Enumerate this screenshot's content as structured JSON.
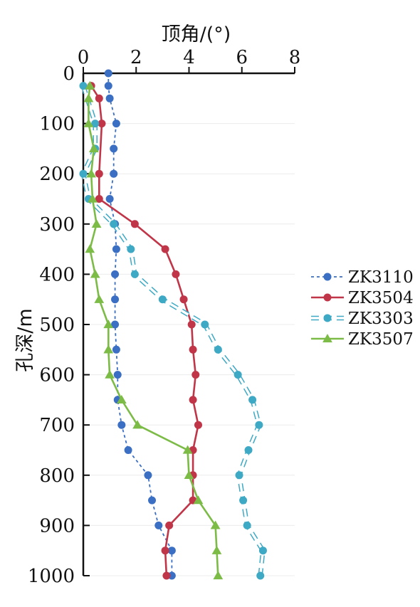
{
  "chart_data": {
    "type": "line",
    "title": "",
    "xlabel": "顶角/(°)",
    "ylabel": "孔深/m",
    "x_axis_position": "top",
    "y_axis_inverted": true,
    "xlim": [
      0,
      8
    ],
    "ylim": [
      0,
      1000
    ],
    "xticks": [
      "0",
      "2",
      "4",
      "6",
      "8"
    ],
    "yticks": [
      "0",
      "100",
      "200",
      "300",
      "400",
      "500",
      "600",
      "700",
      "800",
      "900",
      "1000"
    ],
    "grid": "faint horizontal",
    "legend_position": "right",
    "series": [
      {
        "name": "ZK3110",
        "color": "#3b6fc4",
        "line_style": "dashed",
        "marker": "circle",
        "points": [
          [
            0.95,
            0
          ],
          [
            0.95,
            25
          ],
          [
            1.0,
            50
          ],
          [
            1.25,
            100
          ],
          [
            1.15,
            150
          ],
          [
            1.15,
            200
          ],
          [
            1.0,
            250
          ],
          [
            1.2,
            300
          ],
          [
            1.25,
            350
          ],
          [
            1.2,
            400
          ],
          [
            1.2,
            450
          ],
          [
            1.2,
            500
          ],
          [
            1.25,
            550
          ],
          [
            1.3,
            600
          ],
          [
            1.3,
            650
          ],
          [
            1.45,
            700
          ],
          [
            1.7,
            750
          ],
          [
            2.45,
            800
          ],
          [
            2.6,
            850
          ],
          [
            2.85,
            900
          ],
          [
            3.35,
            950
          ],
          [
            3.35,
            1000
          ]
        ]
      },
      {
        "name": "ZK3504",
        "color": "#c03548",
        "line_style": "solid",
        "marker": "circle",
        "points": [
          [
            0.3,
            25
          ],
          [
            0.6,
            50
          ],
          [
            0.7,
            100
          ],
          [
            0.6,
            200
          ],
          [
            0.6,
            250
          ],
          [
            1.95,
            300
          ],
          [
            3.1,
            350
          ],
          [
            3.5,
            400
          ],
          [
            3.8,
            450
          ],
          [
            4.1,
            500
          ],
          [
            4.15,
            550
          ],
          [
            4.25,
            600
          ],
          [
            4.15,
            650
          ],
          [
            4.35,
            700
          ],
          [
            4.15,
            750
          ],
          [
            4.15,
            800
          ],
          [
            4.15,
            850
          ],
          [
            3.25,
            900
          ],
          [
            3.1,
            950
          ],
          [
            3.15,
            1000
          ]
        ]
      },
      {
        "name": "ZK3303",
        "color": "#3ea9c4",
        "line_style": "double-dashed",
        "marker": "circle",
        "points": [
          [
            0.0,
            25
          ],
          [
            0.45,
            100
          ],
          [
            0.45,
            150
          ],
          [
            0.0,
            200
          ],
          [
            0.2,
            250
          ],
          [
            1.15,
            300
          ],
          [
            1.8,
            350
          ],
          [
            1.95,
            400
          ],
          [
            3.0,
            450
          ],
          [
            4.6,
            500
          ],
          [
            5.1,
            550
          ],
          [
            5.85,
            600
          ],
          [
            6.4,
            650
          ],
          [
            6.65,
            700
          ],
          [
            6.25,
            750
          ],
          [
            5.9,
            800
          ],
          [
            6.05,
            850
          ],
          [
            6.2,
            900
          ],
          [
            6.8,
            950
          ],
          [
            6.7,
            1000
          ]
        ]
      },
      {
        "name": "ZK3507",
        "color": "#7bbb46",
        "line_style": "solid",
        "marker": "triangle",
        "points": [
          [
            0.25,
            25
          ],
          [
            0.2,
            50
          ],
          [
            0.2,
            100
          ],
          [
            0.4,
            150
          ],
          [
            0.3,
            200
          ],
          [
            0.35,
            250
          ],
          [
            0.5,
            300
          ],
          [
            0.25,
            350
          ],
          [
            0.45,
            400
          ],
          [
            0.6,
            450
          ],
          [
            0.95,
            500
          ],
          [
            0.95,
            550
          ],
          [
            1.0,
            600
          ],
          [
            1.45,
            650
          ],
          [
            2.05,
            700
          ],
          [
            3.95,
            750
          ],
          [
            4.0,
            800
          ],
          [
            4.35,
            850
          ],
          [
            5.0,
            900
          ],
          [
            5.05,
            950
          ],
          [
            5.1,
            1000
          ]
        ]
      }
    ]
  }
}
